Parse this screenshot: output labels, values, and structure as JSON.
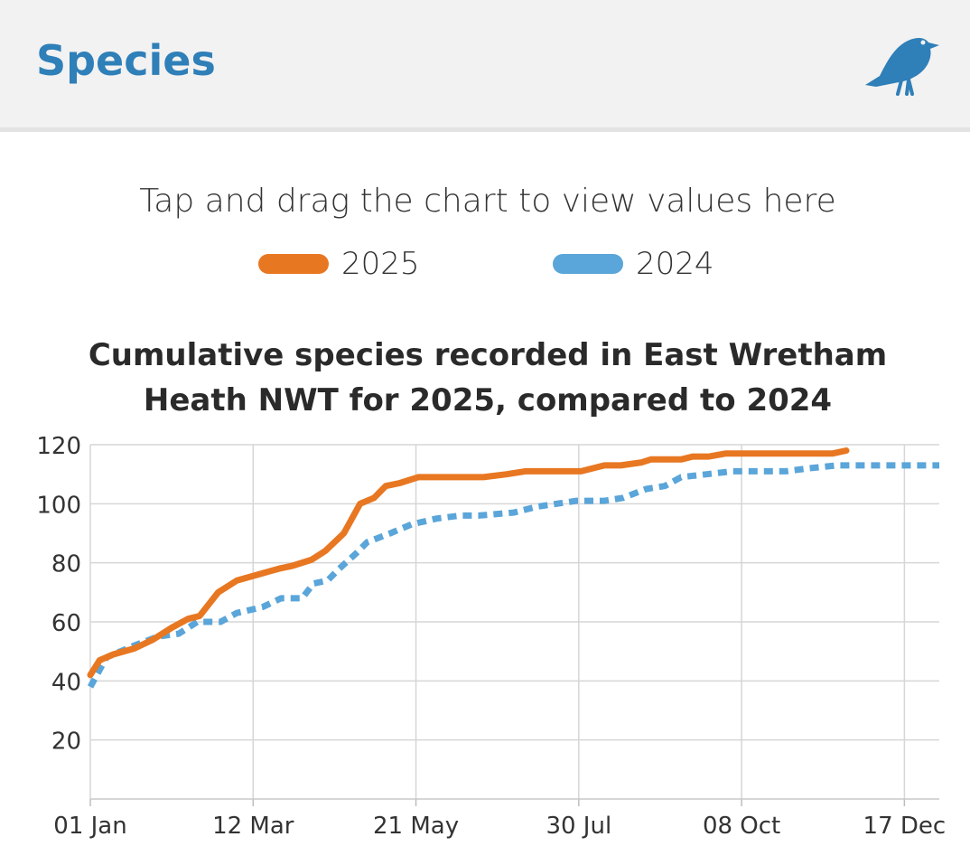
{
  "header": {
    "title": "Species",
    "icon": "bird-icon",
    "accent_color": "#2f7fb8"
  },
  "hint": "Tap and drag the chart to view values here",
  "legend": {
    "items": [
      {
        "label": "2025",
        "color": "#e87722"
      },
      {
        "label": "2024",
        "color": "#5aa5d9"
      }
    ]
  },
  "chart_data": {
    "type": "line",
    "title_lines": [
      "Cumulative species recorded in East Wretham",
      "Heath NWT for 2025, compared to 2024"
    ],
    "xlabel": "",
    "ylabel": "",
    "x_unit": "day of year",
    "xlim": [
      1,
      366
    ],
    "ylim": [
      0,
      120
    ],
    "y_ticks": [
      20,
      40,
      60,
      80,
      100,
      120
    ],
    "x_ticks": [
      {
        "day": 1,
        "label": "01 Jan"
      },
      {
        "day": 71,
        "label": "12 Mar"
      },
      {
        "day": 141,
        "label": "21 May"
      },
      {
        "day": 211,
        "label": "30 Jul"
      },
      {
        "day": 281,
        "label": "08 Oct"
      },
      {
        "day": 351,
        "label": "17 Dec"
      }
    ],
    "grid": true,
    "series": [
      {
        "name": "2025",
        "color": "#e87722",
        "style": "solid",
        "points": [
          [
            1,
            42
          ],
          [
            5,
            47
          ],
          [
            11,
            49
          ],
          [
            20,
            51
          ],
          [
            28,
            54
          ],
          [
            36,
            58
          ],
          [
            43,
            61
          ],
          [
            48,
            62
          ],
          [
            56,
            70
          ],
          [
            64,
            74
          ],
          [
            73,
            76
          ],
          [
            82,
            78
          ],
          [
            88,
            79
          ],
          [
            96,
            81
          ],
          [
            102,
            84
          ],
          [
            110,
            90
          ],
          [
            117,
            100
          ],
          [
            123,
            102
          ],
          [
            128,
            106
          ],
          [
            134,
            107
          ],
          [
            142,
            109
          ],
          [
            155,
            109
          ],
          [
            170,
            109
          ],
          [
            180,
            110
          ],
          [
            188,
            111
          ],
          [
            212,
            111
          ],
          [
            222,
            113
          ],
          [
            229,
            113
          ],
          [
            238,
            114
          ],
          [
            242,
            115
          ],
          [
            255,
            115
          ],
          [
            260,
            116
          ],
          [
            267,
            116
          ],
          [
            274,
            117
          ],
          [
            300,
            117
          ],
          [
            310,
            117
          ],
          [
            320,
            117
          ],
          [
            326,
            118
          ]
        ]
      },
      {
        "name": "2024",
        "color": "#5aa5d9",
        "style": "dotted",
        "points": [
          [
            1,
            38
          ],
          [
            8,
            48
          ],
          [
            20,
            52
          ],
          [
            30,
            55
          ],
          [
            39,
            56
          ],
          [
            47,
            60
          ],
          [
            57,
            60
          ],
          [
            64,
            63
          ],
          [
            75,
            65
          ],
          [
            83,
            68
          ],
          [
            92,
            68
          ],
          [
            97,
            73
          ],
          [
            103,
            74
          ],
          [
            108,
            78
          ],
          [
            115,
            83
          ],
          [
            120,
            87
          ],
          [
            130,
            90
          ],
          [
            139,
            93
          ],
          [
            150,
            95
          ],
          [
            160,
            96
          ],
          [
            168,
            96
          ],
          [
            183,
            97
          ],
          [
            193,
            99
          ],
          [
            210,
            101
          ],
          [
            222,
            101
          ],
          [
            230,
            102
          ],
          [
            240,
            105
          ],
          [
            248,
            106
          ],
          [
            255,
            109
          ],
          [
            266,
            110
          ],
          [
            277,
            111
          ],
          [
            288,
            111
          ],
          [
            300,
            111
          ],
          [
            310,
            112
          ],
          [
            322,
            113
          ],
          [
            335,
            113
          ],
          [
            350,
            113
          ],
          [
            366,
            113
          ]
        ]
      }
    ]
  }
}
